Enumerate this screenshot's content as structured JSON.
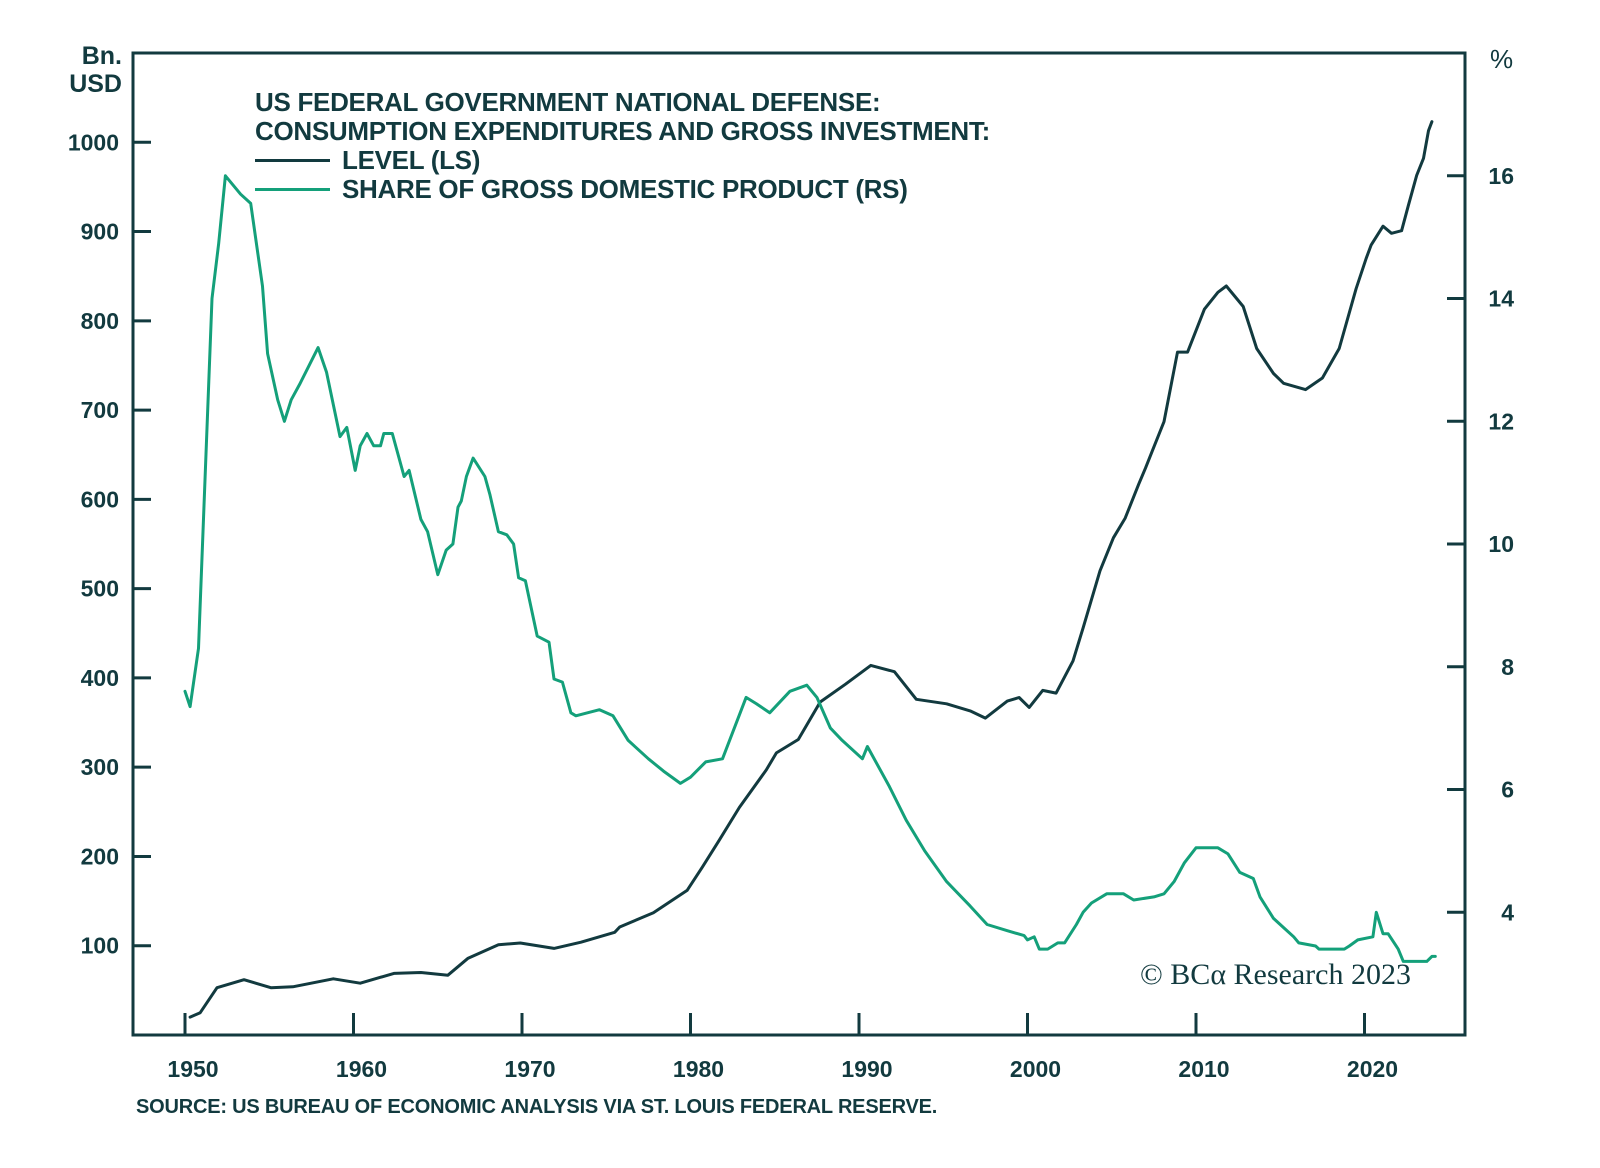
{
  "chart_data": {
    "type": "line",
    "title": "US FEDERAL GOVERNMENT NATIONAL DEFENSE:",
    "subtitle": "CONSUMPTION EXPENDITURES AND GROSS INVESTMENT:",
    "xlabel": "",
    "ylabel_left": "Bn. USD",
    "ylabel_right": "%",
    "left_unit_line1": "Bn.",
    "left_unit_line2": "USD",
    "xlim": [
      1947.0,
      2027.0
    ],
    "ylim_left": [
      0,
      1100
    ],
    "ylim_right": [
      2,
      18
    ],
    "x_ticks": [
      1950,
      1960,
      1970,
      1980,
      1990,
      2000,
      2010,
      2020
    ],
    "x_tick_labels": [
      "1950",
      "1960",
      "1970",
      "1980",
      "1990",
      "2000",
      "2010",
      "2020"
    ],
    "y_left_ticks": [
      100,
      200,
      300,
      400,
      500,
      600,
      700,
      800,
      900,
      1000
    ],
    "y_left_tick_labels": [
      "100",
      "200",
      "300",
      "400",
      "500",
      "600",
      "700",
      "800",
      "900",
      "1000"
    ],
    "y_right_ticks": [
      4,
      6,
      8,
      10,
      12,
      14,
      16
    ],
    "y_right_tick_labels": [
      "4",
      "6",
      "8",
      "10",
      "12",
      "14",
      "16"
    ],
    "grid": false,
    "legend_position": "top-left",
    "annotation": "© BCα Research 2023",
    "source": "SOURCE: US BUREAU OF ECONOMIC ANALYSIS VIA ST. LOUIS FEDERAL RESERVE.",
    "series": [
      {
        "name": "LEVEL (LS)",
        "axis": "left",
        "color": "#123a3f",
        "points": [
          [
            1950.3,
            20
          ],
          [
            1950.9,
            25
          ],
          [
            1951.9,
            53
          ],
          [
            1953.5,
            62
          ],
          [
            1955.1,
            53
          ],
          [
            1956.4,
            54
          ],
          [
            1958.8,
            63
          ],
          [
            1960.4,
            58
          ],
          [
            1962.4,
            69
          ],
          [
            1964.0,
            70
          ],
          [
            1965.6,
            67
          ],
          [
            1966.8,
            86
          ],
          [
            1968.6,
            101
          ],
          [
            1969.9,
            103
          ],
          [
            1971.9,
            97
          ],
          [
            1973.5,
            104
          ],
          [
            1975.5,
            115
          ],
          [
            1975.8,
            121
          ],
          [
            1977.8,
            137
          ],
          [
            1979.8,
            162
          ],
          [
            1980.7,
            188
          ],
          [
            1981.7,
            218
          ],
          [
            1982.9,
            255
          ],
          [
            1984.5,
            297
          ],
          [
            1985.1,
            316
          ],
          [
            1986.4,
            331
          ],
          [
            1987.7,
            373
          ],
          [
            1989.2,
            393
          ],
          [
            1990.7,
            414
          ],
          [
            1992.1,
            407
          ],
          [
            1993.4,
            376
          ],
          [
            1995.2,
            371
          ],
          [
            1996.6,
            363
          ],
          [
            1997.5,
            355
          ],
          [
            1998.8,
            374
          ],
          [
            1999.5,
            378
          ],
          [
            2000.1,
            367
          ],
          [
            2000.9,
            386
          ],
          [
            2001.7,
            383
          ],
          [
            2002.7,
            419
          ],
          [
            2003.3,
            456
          ],
          [
            2004.3,
            520
          ],
          [
            2005.1,
            557
          ],
          [
            2005.8,
            579
          ],
          [
            2006.6,
            617
          ],
          [
            2007.0,
            635
          ],
          [
            2007.4,
            654
          ],
          [
            2008.1,
            687
          ],
          [
            2008.9,
            765
          ],
          [
            2009.5,
            765
          ],
          [
            2010.5,
            813
          ],
          [
            2011.3,
            832
          ],
          [
            2011.8,
            839
          ],
          [
            2012.8,
            816
          ],
          [
            2013.6,
            769
          ],
          [
            2014.6,
            741
          ],
          [
            2015.2,
            730
          ],
          [
            2016.5,
            723
          ],
          [
            2017.5,
            736
          ],
          [
            2018.5,
            769
          ],
          [
            2019.5,
            836
          ],
          [
            2020.1,
            870
          ],
          [
            2020.4,
            885
          ],
          [
            2021.1,
            906
          ],
          [
            2021.6,
            898
          ],
          [
            2022.2,
            901
          ],
          [
            2022.6,
            929
          ],
          [
            2023.1,
            963
          ],
          [
            2023.5,
            982
          ],
          [
            2023.8,
            1013
          ],
          [
            2024.0,
            1023
          ]
        ]
      },
      {
        "name": "SHARE OF GROSS DOMESTIC PRODUCT (RS)",
        "axis": "right",
        "color": "#14a07a",
        "points": [
          [
            1950.0,
            7.6
          ],
          [
            1950.3,
            7.35
          ],
          [
            1950.8,
            8.3
          ],
          [
            1951.6,
            14.0
          ],
          [
            1952.0,
            14.9
          ],
          [
            1952.4,
            16.0
          ],
          [
            1953.3,
            15.7
          ],
          [
            1953.9,
            15.55
          ],
          [
            1954.6,
            14.2
          ],
          [
            1954.9,
            13.1
          ],
          [
            1955.5,
            12.35
          ],
          [
            1955.9,
            12.0
          ],
          [
            1956.3,
            12.35
          ],
          [
            1956.8,
            12.6
          ],
          [
            1957.9,
            13.2
          ],
          [
            1958.4,
            12.8
          ],
          [
            1959.2,
            11.75
          ],
          [
            1959.6,
            11.9
          ],
          [
            1960.1,
            11.2
          ],
          [
            1960.4,
            11.6
          ],
          [
            1960.8,
            11.8
          ],
          [
            1961.2,
            11.6
          ],
          [
            1961.6,
            11.6
          ],
          [
            1961.8,
            11.8
          ],
          [
            1962.3,
            11.8
          ],
          [
            1963.0,
            11.1
          ],
          [
            1963.3,
            11.2
          ],
          [
            1964.0,
            10.4
          ],
          [
            1964.4,
            10.2
          ],
          [
            1965.0,
            9.5
          ],
          [
            1965.5,
            9.9
          ],
          [
            1965.9,
            10.0
          ],
          [
            1966.2,
            10.6
          ],
          [
            1966.4,
            10.7
          ],
          [
            1966.7,
            11.1
          ],
          [
            1967.1,
            11.4
          ],
          [
            1967.8,
            11.1
          ],
          [
            1968.1,
            10.8
          ],
          [
            1968.6,
            10.2
          ],
          [
            1969.1,
            10.15
          ],
          [
            1969.5,
            10.0
          ],
          [
            1969.8,
            9.45
          ],
          [
            1970.2,
            9.4
          ],
          [
            1970.9,
            8.5
          ],
          [
            1971.6,
            8.4
          ],
          [
            1971.9,
            7.8
          ],
          [
            1972.4,
            7.75
          ],
          [
            1972.9,
            7.25
          ],
          [
            1973.2,
            7.2
          ],
          [
            1974.6,
            7.3
          ],
          [
            1975.4,
            7.2
          ],
          [
            1976.3,
            6.8
          ],
          [
            1977.5,
            6.5
          ],
          [
            1978.4,
            6.3
          ],
          [
            1979.4,
            6.1
          ],
          [
            1980.0,
            6.2
          ],
          [
            1980.9,
            6.45
          ],
          [
            1981.9,
            6.5
          ],
          [
            1983.3,
            7.5
          ],
          [
            1983.9,
            7.4
          ],
          [
            1984.7,
            7.25
          ],
          [
            1985.9,
            7.6
          ],
          [
            1986.9,
            7.7
          ],
          [
            1987.5,
            7.5
          ],
          [
            1988.3,
            7.0
          ],
          [
            1989.0,
            6.8
          ],
          [
            1990.2,
            6.5
          ],
          [
            1990.5,
            6.7
          ],
          [
            1991.8,
            6.05
          ],
          [
            1992.8,
            5.5
          ],
          [
            1993.9,
            5.0
          ],
          [
            1995.2,
            4.5
          ],
          [
            1996.6,
            4.1
          ],
          [
            1997.6,
            3.8
          ],
          [
            1998.8,
            3.7
          ],
          [
            1999.8,
            3.62
          ],
          [
            2000.0,
            3.55
          ],
          [
            2000.4,
            3.6
          ],
          [
            2000.7,
            3.4
          ],
          [
            2001.2,
            3.4
          ],
          [
            2001.8,
            3.5
          ],
          [
            2002.2,
            3.5
          ],
          [
            2002.9,
            3.8
          ],
          [
            2003.3,
            4.0
          ],
          [
            2003.8,
            4.15
          ],
          [
            2004.7,
            4.3
          ],
          [
            2005.7,
            4.3
          ],
          [
            2006.3,
            4.2
          ],
          [
            2007.5,
            4.25
          ],
          [
            2008.1,
            4.3
          ],
          [
            2008.7,
            4.5
          ],
          [
            2009.3,
            4.8
          ],
          [
            2010.0,
            5.05
          ],
          [
            2011.3,
            5.05
          ],
          [
            2011.9,
            4.95
          ],
          [
            2012.6,
            4.65
          ],
          [
            2013.4,
            4.55
          ],
          [
            2013.8,
            4.25
          ],
          [
            2014.6,
            3.9
          ],
          [
            2015.2,
            3.75
          ],
          [
            2015.8,
            3.6
          ],
          [
            2016.1,
            3.5
          ],
          [
            2017.1,
            3.45
          ],
          [
            2017.3,
            3.4
          ],
          [
            2018.8,
            3.4
          ],
          [
            2019.1,
            3.45
          ],
          [
            2019.6,
            3.55
          ],
          [
            2020.5,
            3.6
          ],
          [
            2020.7,
            4.0
          ],
          [
            2021.1,
            3.65
          ],
          [
            2021.4,
            3.65
          ],
          [
            2022.0,
            3.4
          ],
          [
            2022.3,
            3.2
          ],
          [
            2023.7,
            3.2
          ],
          [
            2024.0,
            3.28
          ],
          [
            2024.2,
            3.28
          ]
        ]
      }
    ]
  },
  "colors": {
    "axis": "#123a3f",
    "level_line": "#123a3f",
    "share_line": "#14a07a"
  }
}
